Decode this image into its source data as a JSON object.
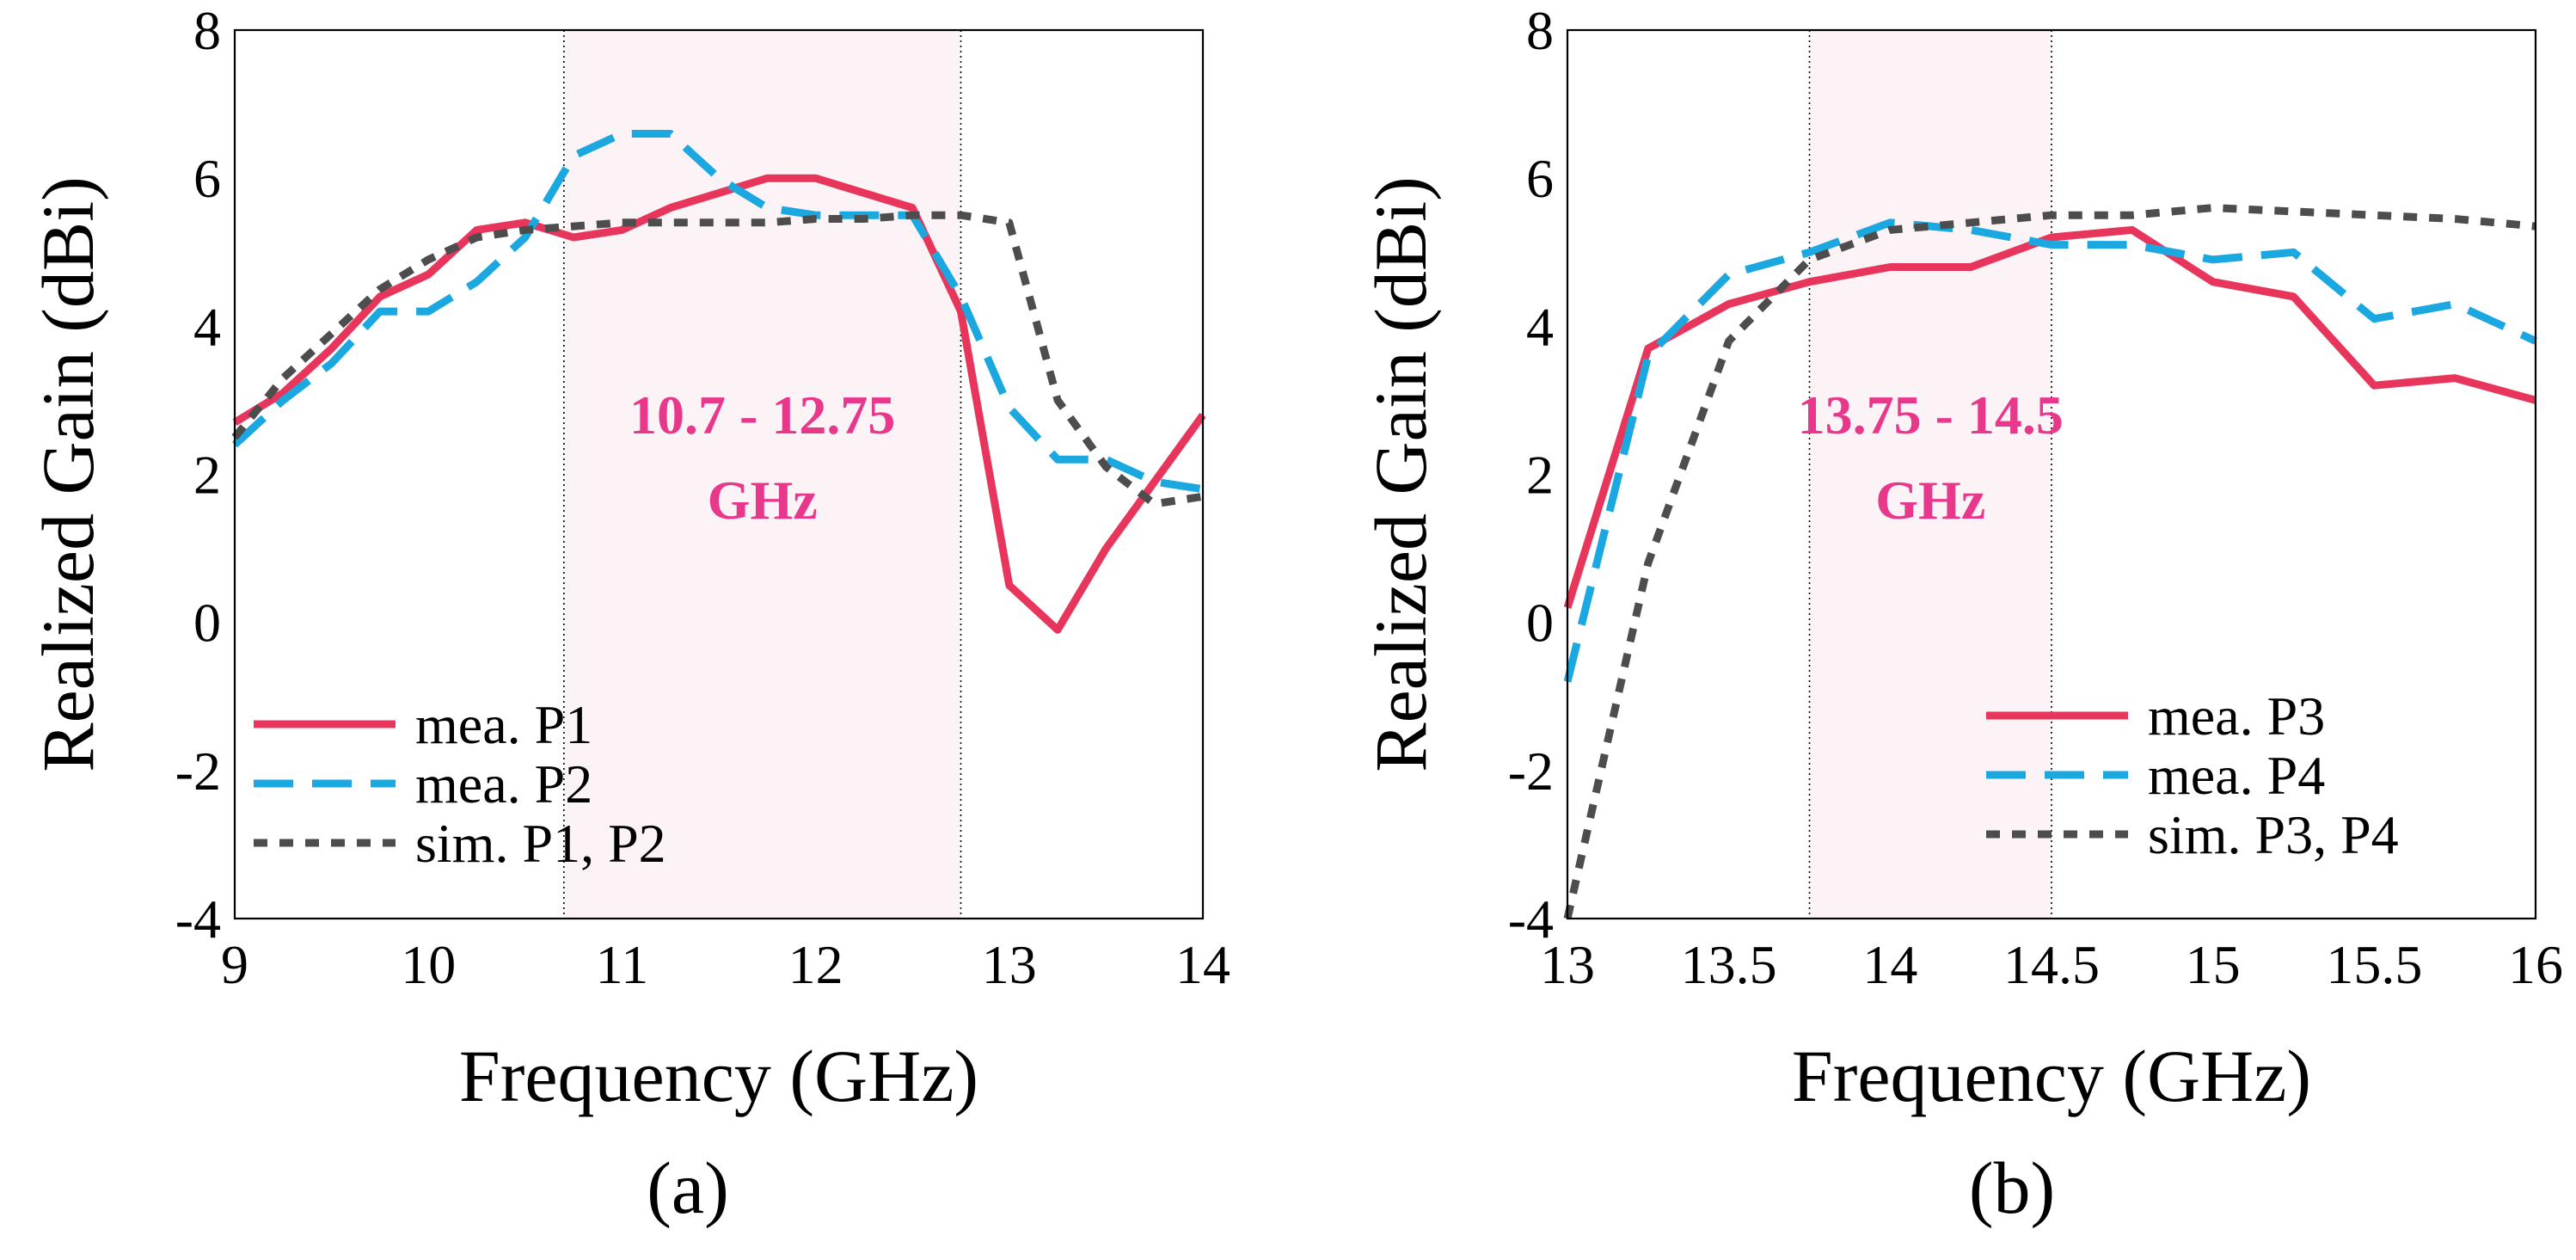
{
  "chart_data": [
    {
      "type": "line",
      "panel_label": "(a)",
      "xlabel": "Frequency (GHz)",
      "ylabel": "Realized Gain (dBi)",
      "xlim": [
        9,
        14
      ],
      "ylim": [
        -4,
        8
      ],
      "xticks": [
        9,
        10,
        11,
        12,
        13,
        14
      ],
      "yticks": [
        -4,
        -2,
        0,
        2,
        4,
        6,
        8
      ],
      "highlight_band": {
        "from": 10.7,
        "to": 12.75,
        "label_line1": "10.7 - 12.75",
        "label_line2": "GHz",
        "color": "#e8388b"
      },
      "legend_position": "bottom-left",
      "series": [
        {
          "name": "mea. P1",
          "color": "#e8355c",
          "style": "solid",
          "x": [
            9.0,
            9.25,
            9.5,
            9.75,
            10.0,
            10.25,
            10.5,
            10.75,
            11.0,
            11.25,
            11.5,
            11.75,
            12.0,
            12.25,
            12.5,
            12.75,
            13.0,
            13.25,
            13.5,
            13.75,
            14.0
          ],
          "y": [
            2.7,
            3.1,
            3.7,
            4.4,
            4.7,
            5.3,
            5.4,
            5.2,
            5.3,
            5.6,
            5.8,
            6.0,
            6.0,
            5.8,
            5.6,
            4.2,
            0.5,
            -0.1,
            1.0,
            1.9,
            2.8
          ]
        },
        {
          "name": "mea. P2",
          "color": "#1ba8e0",
          "style": "dashed",
          "x": [
            9.0,
            9.25,
            9.5,
            9.75,
            10.0,
            10.25,
            10.5,
            10.75,
            11.0,
            11.25,
            11.5,
            11.75,
            12.0,
            12.25,
            12.5,
            12.75,
            13.0,
            13.25,
            13.5,
            13.75,
            14.0
          ],
          "y": [
            2.4,
            3.0,
            3.5,
            4.2,
            4.2,
            4.6,
            5.2,
            6.3,
            6.6,
            6.6,
            6.0,
            5.6,
            5.5,
            5.5,
            5.5,
            4.4,
            2.9,
            2.2,
            2.2,
            1.9,
            1.8
          ]
        },
        {
          "name": "sim. P1, P2",
          "color": "#4d4d4d",
          "style": "dotted",
          "x": [
            9.0,
            9.25,
            9.5,
            9.75,
            10.0,
            10.25,
            10.5,
            10.75,
            11.0,
            11.25,
            11.5,
            11.75,
            12.0,
            12.25,
            12.5,
            12.75,
            13.0,
            13.25,
            13.5,
            13.75,
            14.0
          ],
          "y": [
            2.5,
            3.3,
            3.9,
            4.5,
            4.9,
            5.2,
            5.3,
            5.35,
            5.4,
            5.4,
            5.4,
            5.4,
            5.45,
            5.45,
            5.5,
            5.5,
            5.4,
            3.0,
            2.1,
            1.6,
            1.7
          ]
        }
      ]
    },
    {
      "type": "line",
      "panel_label": "(b)",
      "xlabel": "Frequency (GHz)",
      "ylabel": "Realized Gain (dBi)",
      "xlim": [
        13,
        16
      ],
      "ylim": [
        -4,
        8
      ],
      "xticks": [
        13,
        13.5,
        14,
        14.5,
        15,
        15.5,
        16
      ],
      "yticks": [
        -4,
        -2,
        0,
        2,
        4,
        6,
        8
      ],
      "highlight_band": {
        "from": 13.75,
        "to": 14.5,
        "label_line1": "13.75 - 14.5",
        "label_line2": "GHz",
        "color": "#e8388b"
      },
      "legend_position": "bottom-right",
      "series": [
        {
          "name": "mea. P3",
          "color": "#e8355c",
          "style": "solid",
          "x": [
            13.0,
            13.25,
            13.5,
            13.75,
            14.0,
            14.25,
            14.5,
            14.75,
            15.0,
            15.25,
            15.5,
            15.75,
            16.0
          ],
          "y": [
            0.2,
            3.7,
            4.3,
            4.6,
            4.8,
            4.8,
            5.2,
            5.3,
            4.6,
            4.4,
            3.2,
            3.3,
            3.0
          ]
        },
        {
          "name": "mea. P4",
          "color": "#1ba8e0",
          "style": "dashed",
          "x": [
            13.0,
            13.25,
            13.5,
            13.75,
            14.0,
            14.25,
            14.5,
            14.75,
            15.0,
            15.25,
            15.5,
            15.75,
            16.0
          ],
          "y": [
            -0.8,
            3.6,
            4.7,
            5.0,
            5.4,
            5.3,
            5.1,
            5.1,
            4.9,
            5.0,
            4.1,
            4.3,
            3.8
          ]
        },
        {
          "name": "sim. P3, P4",
          "color": "#4d4d4d",
          "style": "dotted",
          "x": [
            13.0,
            13.25,
            13.5,
            13.75,
            14.0,
            14.25,
            14.5,
            14.75,
            15.0,
            15.25,
            15.5,
            15.75,
            16.0
          ],
          "y": [
            -4.0,
            0.8,
            3.8,
            4.9,
            5.3,
            5.4,
            5.5,
            5.5,
            5.6,
            5.55,
            5.5,
            5.45,
            5.35
          ]
        }
      ]
    }
  ]
}
